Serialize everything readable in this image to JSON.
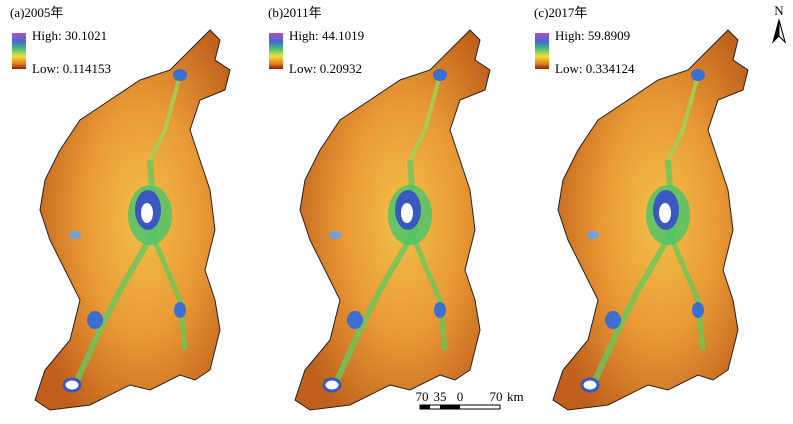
{
  "panels": [
    {
      "label": "(a)2005年",
      "legend": {
        "high": "High: 30.1021",
        "low": "Low: 0.114153"
      }
    },
    {
      "label": "(b)2011年",
      "legend": {
        "high": "High: 44.1019",
        "low": "Low: 0.20932"
      }
    },
    {
      "label": "(c)2017年",
      "legend": {
        "high": "High: 59.8909",
        "low": "Low: 0.334124"
      }
    }
  ],
  "scale_bar": {
    "labels": [
      "70",
      "35",
      "0",
      "70"
    ],
    "unit": "km"
  },
  "north_arrow": "N"
}
